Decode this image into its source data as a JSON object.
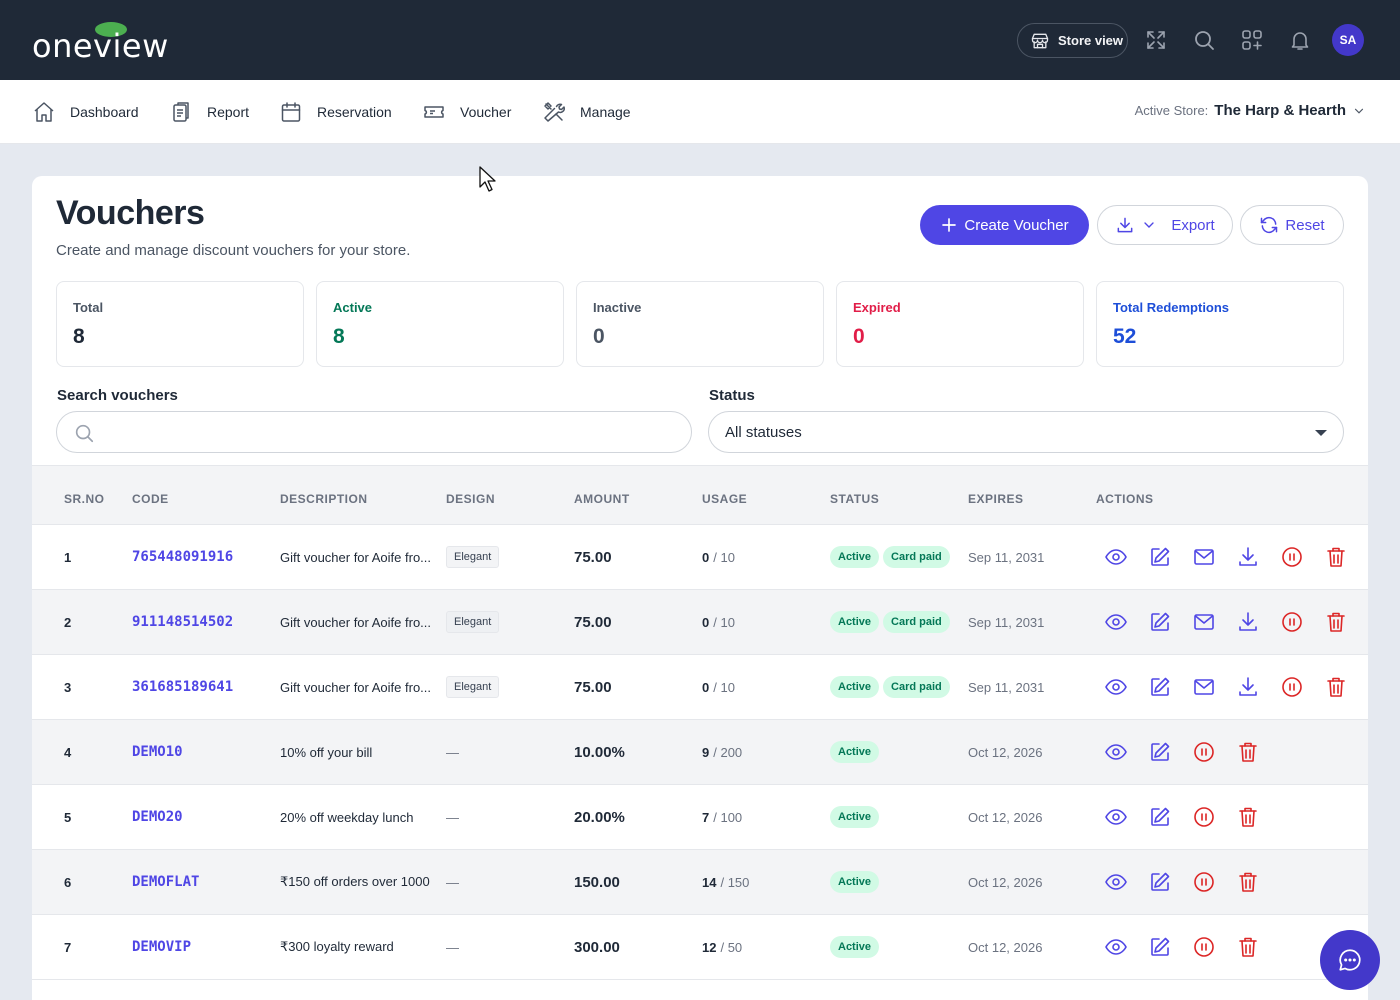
{
  "brand": {
    "logo_text": "oneview"
  },
  "header": {
    "store_view_label": "Store view",
    "avatar_initials": "SA",
    "icons": [
      "store-icon",
      "fullscreen-icon",
      "search-icon",
      "apps-icon",
      "bell-icon"
    ]
  },
  "nav": {
    "items": [
      {
        "label": "Dashboard",
        "icon": "home-icon"
      },
      {
        "label": "Report",
        "icon": "report-icon"
      },
      {
        "label": "Reservation",
        "icon": "calendar-icon"
      },
      {
        "label": "Voucher",
        "icon": "ticket-icon"
      },
      {
        "label": "Manage",
        "icon": "tools-icon"
      }
    ],
    "active_store_label": "Active Store:",
    "active_store_name": "The Harp & Hearth"
  },
  "page": {
    "title": "Vouchers",
    "subtitle": "Create and manage discount vouchers for your store.",
    "create_label": "Create Voucher",
    "export_label": "Export",
    "reset_label": "Reset"
  },
  "stats": [
    {
      "label": "Total",
      "value": "8",
      "color": "#1f2937"
    },
    {
      "label": "Active",
      "value": "8",
      "color": "#047857"
    },
    {
      "label": "Inactive",
      "value": "0",
      "color": "#4b5563"
    },
    {
      "label": "Expired",
      "value": "0",
      "color": "#e11d48"
    },
    {
      "label": "Total Redemptions",
      "value": "52",
      "color": "#1d4ed8"
    }
  ],
  "filters": {
    "search_label": "Search vouchers",
    "search_value": "",
    "status_label": "Status",
    "status_value": "All statuses"
  },
  "table": {
    "headers": [
      "SR.NO",
      "CODE",
      "DESCRIPTION",
      "DESIGN",
      "AMOUNT",
      "USAGE",
      "STATUS",
      "EXPIRES",
      "ACTIONS"
    ],
    "rows": [
      {
        "sr": "1",
        "code": "765448091916",
        "description": "Gift voucher for Aoife fro...",
        "design": "Elegant",
        "amount": "75.00",
        "used": "0",
        "limit": "/ 10",
        "status": "Active",
        "payment": "Card paid",
        "expires": "Sep 11, 2031",
        "actions": [
          "view-icon",
          "edit-icon",
          "email-icon",
          "download-icon",
          "pause-icon",
          "delete-icon"
        ]
      },
      {
        "sr": "2",
        "code": "911148514502",
        "description": "Gift voucher for Aoife fro...",
        "design": "Elegant",
        "amount": "75.00",
        "used": "0",
        "limit": "/ 10",
        "status": "Active",
        "payment": "Card paid",
        "expires": "Sep 11, 2031",
        "actions": [
          "view-icon",
          "edit-icon",
          "email-icon",
          "download-icon",
          "pause-icon",
          "delete-icon"
        ]
      },
      {
        "sr": "3",
        "code": "361685189641",
        "description": "Gift voucher for Aoife fro...",
        "design": "Elegant",
        "amount": "75.00",
        "used": "0",
        "limit": "/ 10",
        "status": "Active",
        "payment": "Card paid",
        "expires": "Sep 11, 2031",
        "actions": [
          "view-icon",
          "edit-icon",
          "email-icon",
          "download-icon",
          "pause-icon",
          "delete-icon"
        ]
      },
      {
        "sr": "4",
        "code": "DEMO10",
        "description": "10% off your bill",
        "design": "—",
        "amount": "10.00%",
        "used": "9",
        "limit": "/ 200",
        "status": "Active",
        "payment": "",
        "expires": "Oct 12, 2026",
        "actions": [
          "view-icon",
          "edit-icon",
          "pause-icon",
          "delete-icon"
        ]
      },
      {
        "sr": "5",
        "code": "DEMO20",
        "description": "20% off weekday lunch",
        "design": "—",
        "amount": "20.00%",
        "used": "7",
        "limit": "/ 100",
        "status": "Active",
        "payment": "",
        "expires": "Oct 12, 2026",
        "actions": [
          "view-icon",
          "edit-icon",
          "pause-icon",
          "delete-icon"
        ]
      },
      {
        "sr": "6",
        "code": "DEMOFLAT",
        "description": "₹150 off orders over 1000",
        "design": "—",
        "amount": "150.00",
        "used": "14",
        "limit": "/ 150",
        "status": "Active",
        "payment": "",
        "expires": "Oct 12, 2026",
        "actions": [
          "view-icon",
          "edit-icon",
          "pause-icon",
          "delete-icon"
        ]
      },
      {
        "sr": "7",
        "code": "DEMOVIP",
        "description": "₹300 loyalty reward",
        "design": "—",
        "amount": "300.00",
        "used": "12",
        "limit": "/ 50",
        "status": "Active",
        "payment": "",
        "expires": "Oct 12, 2026",
        "actions": [
          "view-icon",
          "edit-icon",
          "pause-icon",
          "delete-icon"
        ]
      }
    ]
  },
  "colors": {
    "accent": "#4f46e5",
    "danger": "#dc2626",
    "topbar": "#1f2937",
    "badge_bg": "#d1fae5",
    "badge_text": "#047857"
  }
}
